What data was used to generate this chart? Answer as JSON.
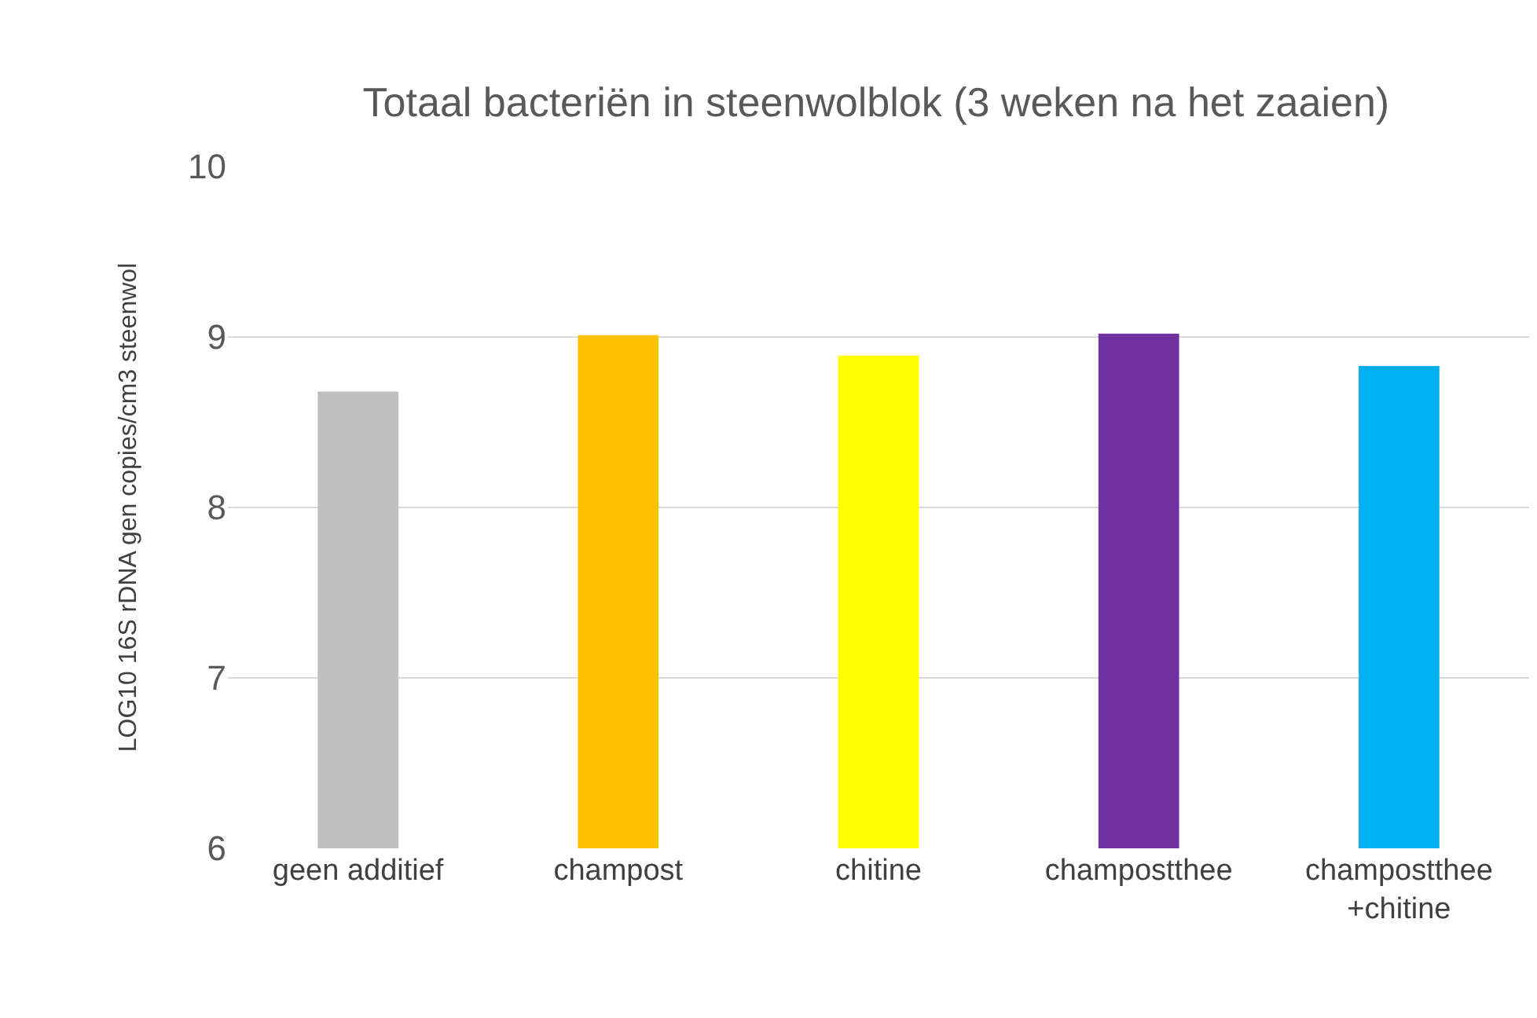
{
  "chart_data": {
    "type": "bar",
    "title": "Totaal bacteriën in steenwolblok (3 weken na het zaaien)",
    "ylabel": "LOG10 16S rDNA gen copies/cm3 steenwol",
    "categories": [
      "geen additief",
      "champost",
      "chitine",
      "champostthee",
      "champostthee +chitine"
    ],
    "values": [
      8.68,
      9.01,
      8.89,
      9.02,
      8.83
    ],
    "colors": [
      "#bfbfbf",
      "#ffc000",
      "#ffff00",
      "#7030a0",
      "#00b0f0"
    ],
    "ylim": [
      6,
      10
    ],
    "yticks": [
      6,
      7,
      8,
      9,
      10
    ],
    "grid": "y"
  }
}
